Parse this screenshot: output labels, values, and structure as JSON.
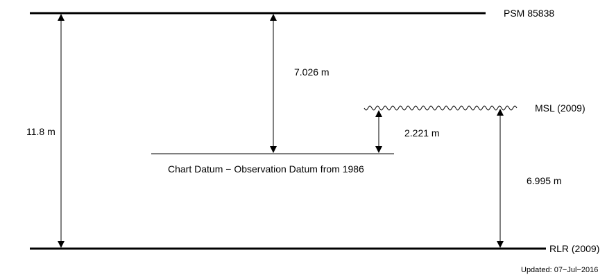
{
  "datums": {
    "psm": "PSM 85838",
    "msl": "MSL (2009)",
    "rlr": "RLR (2009)",
    "chart_datum": "Chart Datum − Observation Datum from 1986"
  },
  "measurements": {
    "total": "11.8 m",
    "psm_to_chart": "7.026 m",
    "msl_to_chart": "2.221 m",
    "msl_to_rlr": "6.995 m"
  },
  "footer": {
    "updated": "Updated: 07−Jul−2016"
  }
}
